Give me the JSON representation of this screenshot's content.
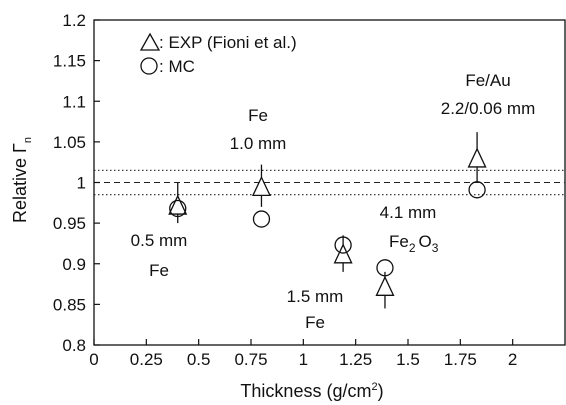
{
  "chart_data": {
    "type": "scatter",
    "title": "",
    "xlabel_main": "Thickness (g/cm",
    "xlabel_sup": "2",
    "xlabel_end": ")",
    "ylabel_main": "Relative Γ",
    "ylabel_sub": "n",
    "xlim": [
      0,
      2.25
    ],
    "ylim": [
      0.8,
      1.2
    ],
    "x_ticks": [
      "0",
      "0.25",
      "0.5",
      "0.75",
      "1",
      "1.25",
      "1.5",
      "1.75",
      "2"
    ],
    "y_ticks": [
      "0.8",
      "0.85",
      "0.9",
      "0.95",
      "1",
      "1.05",
      "1.1",
      "1.15",
      "1.2"
    ],
    "reference_lines": [
      {
        "y": 1.0,
        "style": "dashed"
      },
      {
        "y": 1.015,
        "style": "dotted"
      },
      {
        "y": 0.985,
        "style": "dotted"
      }
    ],
    "legend": {
      "placement": "top-left",
      "items": [
        {
          "marker": "triangle",
          "label": ": EXP (Fioni et al.)"
        },
        {
          "marker": "circle",
          "label": ": MC"
        }
      ]
    },
    "series": [
      {
        "name": "EXP (Fioni et al.)",
        "marker": "triangle",
        "points": [
          {
            "x": 0.4,
            "y": 0.97,
            "err_lo": 0.95,
            "err_hi": 1.0
          },
          {
            "x": 0.8,
            "y": 0.993,
            "err_lo": 0.97,
            "err_hi": 1.022
          },
          {
            "x": 1.19,
            "y": 0.91,
            "err_lo": 0.89,
            "err_hi": 0.935
          },
          {
            "x": 1.39,
            "y": 0.87,
            "err_lo": 0.845,
            "err_hi": 0.89
          },
          {
            "x": 1.83,
            "y": 1.028,
            "err_lo": 1.0,
            "err_hi": 1.062
          }
        ]
      },
      {
        "name": "MC",
        "marker": "circle",
        "points": [
          {
            "x": 0.4,
            "y": 0.968
          },
          {
            "x": 0.8,
            "y": 0.955
          },
          {
            "x": 1.19,
            "y": 0.923
          },
          {
            "x": 1.39,
            "y": 0.895
          },
          {
            "x": 1.83,
            "y": 0.991
          }
        ]
      }
    ],
    "annotations": [
      {
        "id": "a05",
        "lines": [
          "0.5 mm",
          "Fe"
        ]
      },
      {
        "id": "a10",
        "lines": [
          "Fe",
          "1.0 mm"
        ]
      },
      {
        "id": "a15",
        "lines": [
          "1.5 mm",
          "Fe"
        ]
      },
      {
        "id": "a41",
        "lines": [
          "4.1 mm"
        ],
        "formula": {
          "el1": "Fe",
          "sub1": "2",
          "el2": "O",
          "sub2": "3"
        }
      },
      {
        "id": "aau",
        "lines": [
          "Fe/Au",
          "2.2/0.06 mm"
        ]
      }
    ]
  }
}
